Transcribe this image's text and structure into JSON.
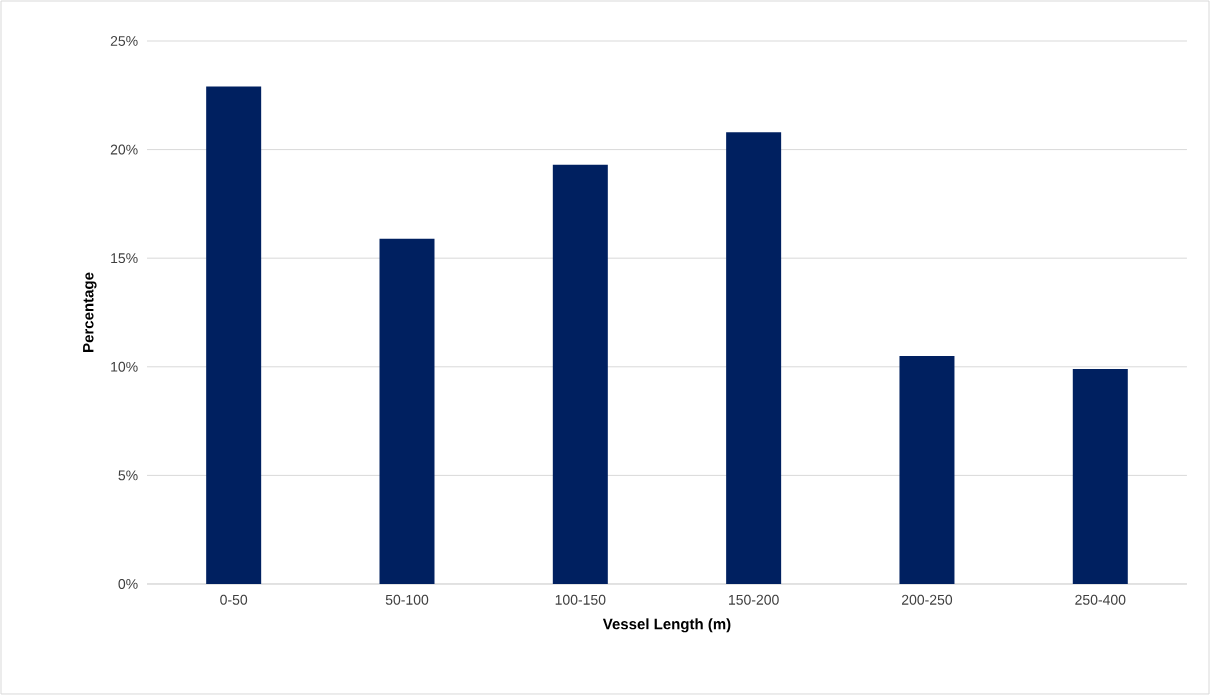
{
  "chart_data": {
    "type": "bar",
    "xlabel": "Vessel Length (m)",
    "ylabel": "Percentage",
    "categories": [
      "0-50",
      "50-100",
      "100-150",
      "150-200",
      "200-250",
      "250-400"
    ],
    "values": [
      22.9,
      15.9,
      19.3,
      20.8,
      10.5,
      9.9
    ],
    "color": "#002060",
    "ylim": [
      0,
      25
    ],
    "yticks": [
      {
        "value": 0,
        "label": "0%"
      },
      {
        "value": 5,
        "label": "5%"
      },
      {
        "value": 10,
        "label": "10%"
      },
      {
        "value": 15,
        "label": "15%"
      },
      {
        "value": 20,
        "label": "20%"
      },
      {
        "value": 25,
        "label": "25%"
      }
    ],
    "grid": "y"
  }
}
